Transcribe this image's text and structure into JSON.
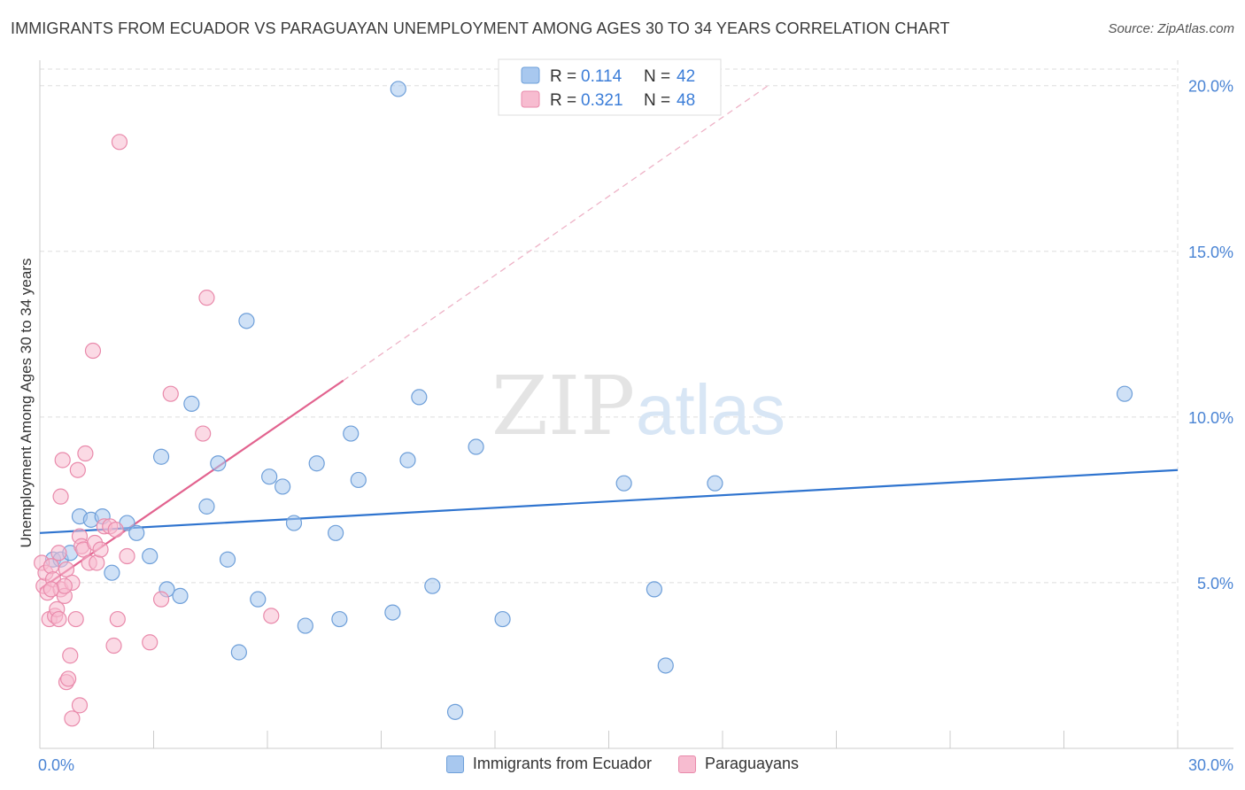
{
  "header": {
    "title": "IMMIGRANTS FROM ECUADOR VS PARAGUAYAN UNEMPLOYMENT AMONG AGES 30 TO 34 YEARS CORRELATION CHART",
    "source": "Source: ZipAtlas.com"
  },
  "watermark": {
    "zip": "ZIP",
    "atlas": "atlas"
  },
  "legend_box": [
    {
      "r_label": "R =",
      "r_value": "0.114",
      "n_label": "N =",
      "n_value": "42"
    },
    {
      "r_label": "R =",
      "r_value": "0.321",
      "n_label": "N =",
      "n_value": "48"
    }
  ],
  "colors": {
    "blue_fill": "#a8c8ef",
    "blue_stroke": "#6e9fd9",
    "blue_line": "#2f74cf",
    "pink_fill": "#f7bcd0",
    "pink_stroke": "#e98aab",
    "pink_line": "#e2638f",
    "axis_text": "#4a84d4",
    "grid": "#dddddd"
  },
  "chart_data": {
    "type": "scatter",
    "title": "IMMIGRANTS FROM ECUADOR VS PARAGUAYAN UNEMPLOYMENT AMONG AGES 30 TO 34 YEARS CORRELATION CHART",
    "xlabel": "",
    "ylabel": "Unemployment Among Ages 30 to 34 years",
    "xlim": [
      0,
      30
    ],
    "ylim": [
      0,
      20.5
    ],
    "x_tick_labels": [
      "0.0%",
      "30.0%"
    ],
    "y_ticks": [
      5,
      10,
      15,
      20
    ],
    "y_tick_labels": [
      "5.0%",
      "10.0%",
      "15.0%",
      "20.0%"
    ],
    "legend_position": "bottom-center",
    "series": [
      {
        "name": "Immigrants from Ecuador",
        "R": 0.114,
        "N": 42,
        "trend": {
          "x": [
            0,
            30
          ],
          "y": [
            6.5,
            8.4
          ]
        },
        "points": [
          [
            0.35,
            5.7
          ],
          [
            0.55,
            5.7
          ],
          [
            0.8,
            5.9
          ],
          [
            1.05,
            7.0
          ],
          [
            1.35,
            6.9
          ],
          [
            1.65,
            7.0
          ],
          [
            1.9,
            5.3
          ],
          [
            2.3,
            6.8
          ],
          [
            2.55,
            6.5
          ],
          [
            2.9,
            5.8
          ],
          [
            3.2,
            8.8
          ],
          [
            3.35,
            4.8
          ],
          [
            3.7,
            4.6
          ],
          [
            4.0,
            10.4
          ],
          [
            4.4,
            7.3
          ],
          [
            4.7,
            8.6
          ],
          [
            4.95,
            5.7
          ],
          [
            5.25,
            2.9
          ],
          [
            5.45,
            12.9
          ],
          [
            5.75,
            4.5
          ],
          [
            6.05,
            8.2
          ],
          [
            6.4,
            7.9
          ],
          [
            6.7,
            6.8
          ],
          [
            7.0,
            3.7
          ],
          [
            7.3,
            8.6
          ],
          [
            7.8,
            6.5
          ],
          [
            7.9,
            3.9
          ],
          [
            8.2,
            9.5
          ],
          [
            8.4,
            8.1
          ],
          [
            9.3,
            4.1
          ],
          [
            9.45,
            19.9
          ],
          [
            9.7,
            8.7
          ],
          [
            10.0,
            10.6
          ],
          [
            10.35,
            4.9
          ],
          [
            10.95,
            1.1
          ],
          [
            11.5,
            9.1
          ],
          [
            12.2,
            3.9
          ],
          [
            15.4,
            8.0
          ],
          [
            16.2,
            4.8
          ],
          [
            16.5,
            2.5
          ],
          [
            17.8,
            8.0
          ],
          [
            28.6,
            10.7
          ]
        ]
      },
      {
        "name": "Paraguayans",
        "R": 0.321,
        "N": 48,
        "trend": {
          "x": [
            0,
            8.0
          ],
          "y": [
            4.8,
            11.1
          ]
        },
        "trend_extension": {
          "x": [
            8.0,
            19.2
          ],
          "y": [
            11.1,
            20.0
          ]
        },
        "points": [
          [
            0.05,
            5.6
          ],
          [
            0.1,
            4.9
          ],
          [
            0.15,
            5.3
          ],
          [
            0.2,
            4.7
          ],
          [
            0.25,
            3.9
          ],
          [
            0.3,
            5.5
          ],
          [
            0.35,
            5.1
          ],
          [
            0.4,
            4.0
          ],
          [
            0.45,
            4.2
          ],
          [
            0.5,
            3.9
          ],
          [
            0.5,
            5.9
          ],
          [
            0.55,
            4.8
          ],
          [
            0.55,
            7.6
          ],
          [
            0.6,
            8.7
          ],
          [
            0.65,
            4.6
          ],
          [
            0.7,
            5.4
          ],
          [
            0.7,
            2.0
          ],
          [
            0.75,
            2.1
          ],
          [
            0.8,
            2.8
          ],
          [
            0.85,
            5.0
          ],
          [
            0.85,
            0.9
          ],
          [
            0.95,
            3.9
          ],
          [
            1.0,
            8.4
          ],
          [
            1.05,
            1.3
          ],
          [
            1.05,
            6.4
          ],
          [
            1.1,
            6.1
          ],
          [
            1.15,
            6.0
          ],
          [
            1.2,
            8.9
          ],
          [
            1.3,
            5.6
          ],
          [
            1.4,
            12.0
          ],
          [
            1.45,
            6.2
          ],
          [
            1.5,
            5.6
          ],
          [
            1.6,
            6.0
          ],
          [
            1.7,
            6.7
          ],
          [
            1.85,
            6.7
          ],
          [
            1.95,
            3.1
          ],
          [
            2.0,
            6.6
          ],
          [
            2.05,
            3.9
          ],
          [
            2.1,
            18.3
          ],
          [
            2.3,
            5.8
          ],
          [
            2.9,
            3.2
          ],
          [
            3.2,
            4.5
          ],
          [
            3.45,
            10.7
          ],
          [
            4.3,
            9.5
          ],
          [
            4.4,
            13.6
          ],
          [
            6.1,
            4.0
          ],
          [
            0.65,
            4.9
          ],
          [
            0.3,
            4.8
          ]
        ]
      }
    ]
  },
  "legend_bottom": [
    {
      "label": "Immigrants from Ecuador"
    },
    {
      "label": "Paraguayans"
    }
  ]
}
